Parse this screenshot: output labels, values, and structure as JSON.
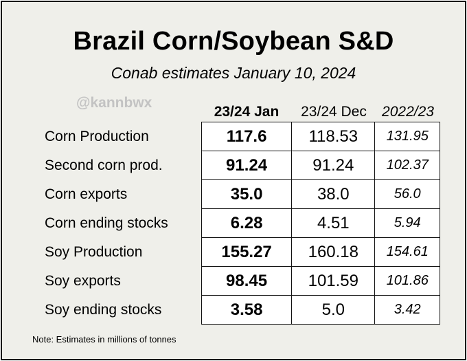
{
  "title": "Brazil Corn/Soybean S&D",
  "subtitle": "Conab estimates January 10, 2024",
  "watermark": "@kannbwx",
  "columns": [
    "23/24 Jan",
    "23/24 Dec",
    "2022/23"
  ],
  "rows": [
    {
      "label": "Corn Production",
      "values": [
        "117.6",
        "118.53",
        "131.95"
      ]
    },
    {
      "label": "Second corn prod.",
      "values": [
        "91.24",
        "91.24",
        "102.37"
      ]
    },
    {
      "label": "Corn exports",
      "values": [
        "35.0",
        "38.0",
        "56.0"
      ]
    },
    {
      "label": "Corn ending stocks",
      "values": [
        "6.28",
        "4.51",
        "5.94"
      ]
    },
    {
      "label": "Soy Production",
      "values": [
        "155.27",
        "160.18",
        "154.61"
      ]
    },
    {
      "label": "Soy exports",
      "values": [
        "98.45",
        "101.59",
        "101.86"
      ]
    },
    {
      "label": "Soy ending stocks",
      "values": [
        "3.58",
        "5.0",
        "3.42"
      ]
    }
  ],
  "note": "Note: Estimates in millions of tonnes",
  "colors": {
    "background": "#efefea",
    "border": "#111111",
    "watermark": "#c3c3c3"
  }
}
